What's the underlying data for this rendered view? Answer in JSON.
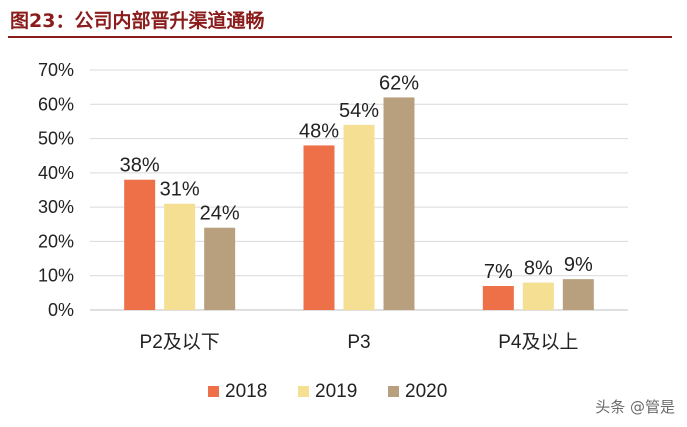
{
  "header": {
    "title": "图23：公司内部晋升渠道通畅"
  },
  "watermark": "头条 @管是",
  "colors": {
    "title": "#8a1c1c",
    "grid": "#d9d9d9"
  },
  "chart_data": {
    "type": "bar",
    "categories": [
      "P2及以下",
      "P3",
      "P4及以上"
    ],
    "series": [
      {
        "name": "2018",
        "color": "#ee7049",
        "values": [
          38,
          48,
          7
        ]
      },
      {
        "name": "2019",
        "color": "#f4df93",
        "values": [
          31,
          54,
          8
        ]
      },
      {
        "name": "2020",
        "color": "#b8a07e",
        "values": [
          24,
          62,
          9
        ]
      }
    ],
    "yticks": [
      "0%",
      "10%",
      "20%",
      "30%",
      "40%",
      "50%",
      "60%",
      "70%"
    ],
    "value_suffix": "%",
    "ylim": [
      0,
      70
    ],
    "grid": true,
    "legend": "bottom"
  }
}
